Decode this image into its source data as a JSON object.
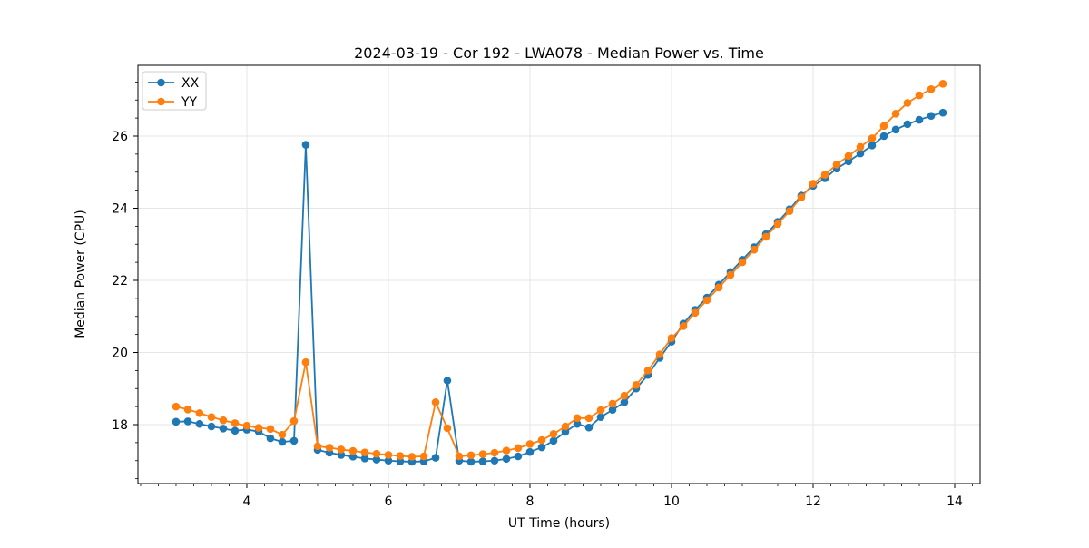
{
  "chart_data": {
    "type": "line",
    "title": "2024-03-19 - Cor 192 - LWA078 - Median Power vs. Time",
    "xlabel": "UT Time (hours)",
    "ylabel": "Median Power (CPU)",
    "xlim": [
      2.462,
      14.359
    ],
    "ylim": [
      16.365,
      27.962
    ],
    "xticks": [
      4,
      6,
      8,
      10,
      12,
      14
    ],
    "yticks": [
      18,
      20,
      22,
      24,
      26
    ],
    "x_minor_tick_step": 0.25,
    "y_minor_tick_step": 0.5,
    "grid": true,
    "grid_color": "#e6e6e6",
    "legend_position": "upper left",
    "x": [
      3.0,
      3.167,
      3.333,
      3.5,
      3.667,
      3.833,
      4.0,
      4.167,
      4.333,
      4.5,
      4.667,
      4.833,
      5.0,
      5.167,
      5.333,
      5.5,
      5.667,
      5.833,
      6.0,
      6.167,
      6.333,
      6.5,
      6.667,
      6.833,
      7.0,
      7.167,
      7.333,
      7.5,
      7.667,
      7.833,
      8.0,
      8.167,
      8.333,
      8.5,
      8.667,
      8.833,
      9.0,
      9.167,
      9.333,
      9.5,
      9.667,
      9.833,
      10.0,
      10.167,
      10.333,
      10.5,
      10.667,
      10.833,
      11.0,
      11.167,
      11.333,
      11.5,
      11.667,
      11.833,
      12.0,
      12.167,
      12.333,
      12.5,
      12.667,
      12.833,
      13.0,
      13.167,
      13.333,
      13.5,
      13.667,
      13.833
    ],
    "series": [
      {
        "name": "XX",
        "color": "#1f77b4",
        "values": [
          18.08,
          18.09,
          18.02,
          17.95,
          17.89,
          17.83,
          17.86,
          17.81,
          17.62,
          17.52,
          17.55,
          25.76,
          17.3,
          17.22,
          17.16,
          17.11,
          17.06,
          17.03,
          17.0,
          16.98,
          16.97,
          16.98,
          17.08,
          19.22,
          17.0,
          16.97,
          16.98,
          17.0,
          17.05,
          17.12,
          17.24,
          17.37,
          17.55,
          17.8,
          18.02,
          17.92,
          18.21,
          18.41,
          18.62,
          19.0,
          19.38,
          19.85,
          20.3,
          20.8,
          21.18,
          21.52,
          21.88,
          22.23,
          22.57,
          22.92,
          23.28,
          23.62,
          23.97,
          24.35,
          24.62,
          24.83,
          25.1,
          25.3,
          25.52,
          25.74,
          26.0,
          26.18,
          26.33,
          26.45,
          26.56,
          26.65
        ]
      },
      {
        "name": "YY",
        "color": "#ff7f0e",
        "values": [
          18.5,
          18.42,
          18.32,
          18.21,
          18.12,
          18.04,
          17.97,
          17.91,
          17.88,
          17.72,
          18.1,
          19.73,
          17.4,
          17.36,
          17.31,
          17.27,
          17.23,
          17.19,
          17.16,
          17.13,
          17.11,
          17.12,
          18.62,
          17.9,
          17.12,
          17.15,
          17.18,
          17.22,
          17.28,
          17.35,
          17.46,
          17.57,
          17.74,
          17.95,
          18.18,
          18.18,
          18.4,
          18.58,
          18.8,
          19.1,
          19.5,
          19.95,
          20.4,
          20.73,
          21.1,
          21.45,
          21.8,
          22.15,
          22.5,
          22.85,
          23.21,
          23.56,
          23.92,
          24.3,
          24.68,
          24.93,
          25.21,
          25.45,
          25.7,
          25.94,
          26.28,
          26.62,
          26.92,
          27.13,
          27.3,
          27.45
        ]
      }
    ]
  }
}
